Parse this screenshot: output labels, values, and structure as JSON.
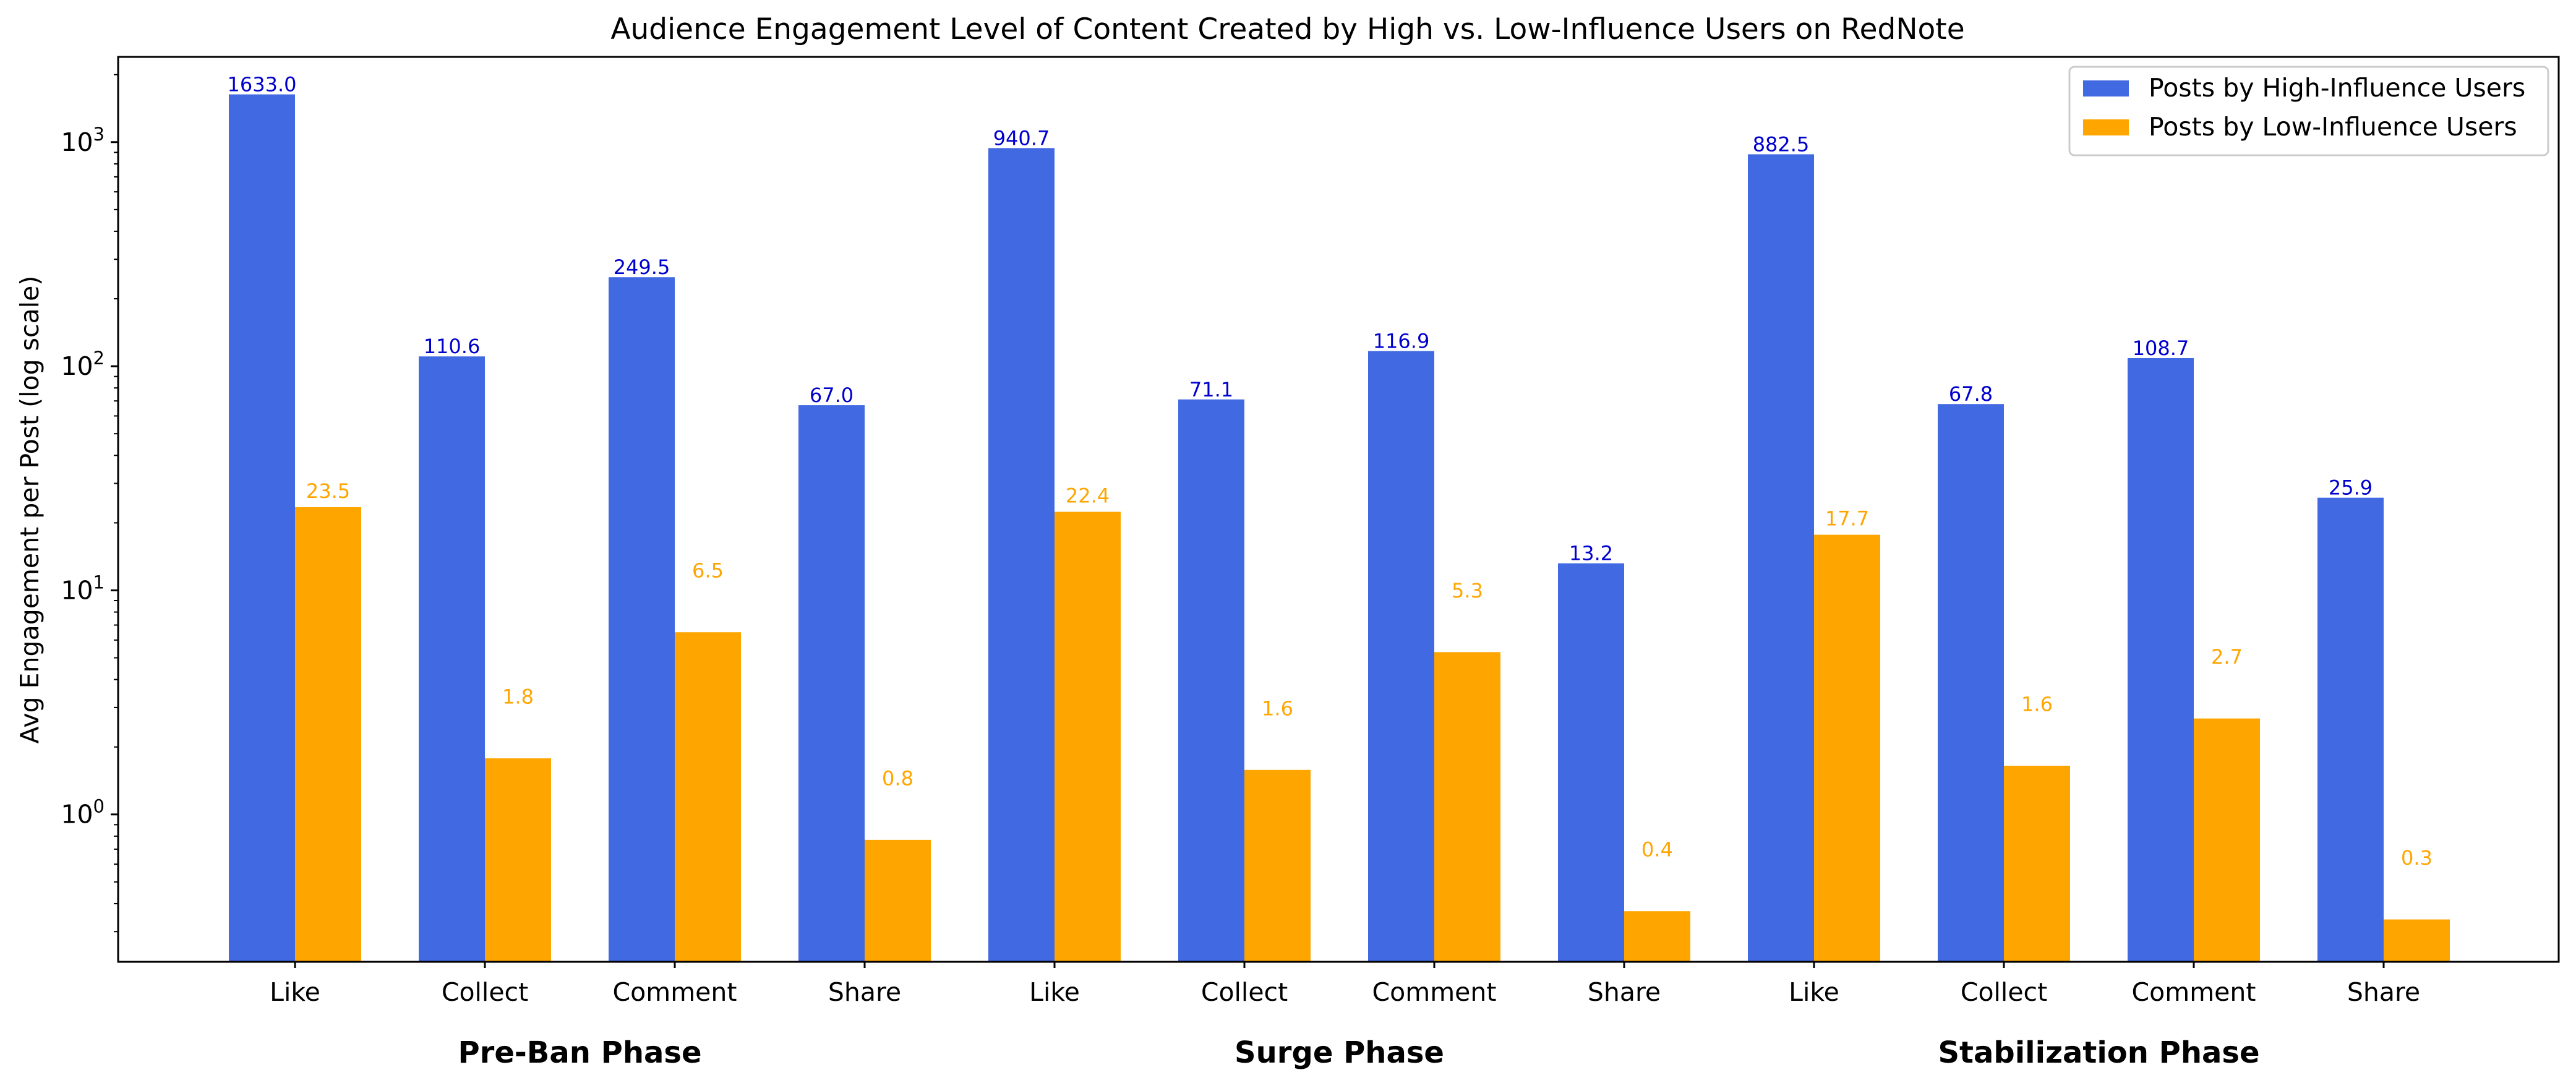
{
  "chart_data": {
    "type": "bar",
    "title": "Audience Engagement Level of Content Created by High vs. Low-Influence Users on RedNote",
    "xlabel": "",
    "ylabel": "Avg Engagement per Post (log scale)",
    "yscale": "log",
    "ylim": [
      0.22,
      2400
    ],
    "yticks": [
      1,
      10,
      100,
      1000
    ],
    "ytick_labels": [
      {
        "base": "10",
        "exp": "0"
      },
      {
        "base": "10",
        "exp": "1"
      },
      {
        "base": "10",
        "exp": "2"
      },
      {
        "base": "10",
        "exp": "3"
      }
    ],
    "categories": [
      "Like",
      "Collect",
      "Comment",
      "Share",
      "Like",
      "Collect",
      "Comment",
      "Share",
      "Like",
      "Collect",
      "Comment",
      "Share"
    ],
    "groups": [
      "Pre-Ban Phase",
      "Surge Phase",
      "Stabilization Phase"
    ],
    "legend_position": "top-right",
    "series": [
      {
        "name": "Posts by High-Influence Users",
        "color": "#4169e1",
        "label_color": "#0000cd",
        "values": [
          1633.0,
          110.6,
          249.5,
          67.0,
          940.7,
          71.1,
          116.9,
          13.2,
          882.5,
          67.8,
          108.7,
          25.9
        ],
        "labels": [
          "1633.0",
          "110.6",
          "249.5",
          "67.0",
          "940.7",
          "71.1",
          "116.9",
          "13.2",
          "882.5",
          "67.8",
          "108.7",
          "25.9"
        ]
      },
      {
        "name": "Posts by Low-Influence Users",
        "color": "#ffa500",
        "label_color": "#ffa500",
        "values": [
          23.5,
          1.8,
          6.5,
          0.8,
          22.4,
          1.6,
          5.3,
          0.4,
          17.7,
          1.6,
          2.7,
          0.3
        ],
        "plotted_values": [
          23.5,
          1.78,
          6.5,
          0.77,
          22.4,
          1.58,
          5.3,
          0.37,
          17.7,
          1.65,
          2.68,
          0.34
        ],
        "labels": [
          "23.5",
          "1.8",
          "6.5",
          "0.8",
          "22.4",
          "1.6",
          "5.3",
          "0.4",
          "17.7",
          "1.6",
          "2.7",
          "0.3"
        ]
      }
    ]
  }
}
